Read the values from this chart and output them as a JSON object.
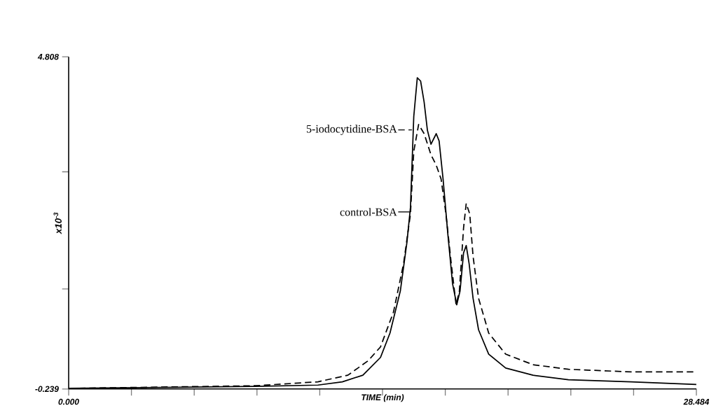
{
  "chart_data": {
    "type": "line",
    "xlabel": "TIME (min)",
    "ylabel": "x10$^{-3}$",
    "xlim": [
      0,
      28.484
    ],
    "ylim": [
      -0.239,
      4.808
    ],
    "xticks": [
      {
        "value": 0,
        "label": "0.000"
      },
      {
        "value": 2.848,
        "label": null
      },
      {
        "value": 5.697,
        "label": null
      },
      {
        "value": 8.545,
        "label": null
      },
      {
        "value": 11.394,
        "label": null
      },
      {
        "value": 14.242,
        "label": null
      },
      {
        "value": 17.09,
        "label": null
      },
      {
        "value": 19.939,
        "label": null
      },
      {
        "value": 22.787,
        "label": null
      },
      {
        "value": 25.636,
        "label": null
      },
      {
        "value": 28.484,
        "label": "28.484"
      }
    ],
    "yticks": [
      {
        "value": -0.239,
        "label": "-0.239"
      },
      {
        "value": 1.28,
        "label": null
      },
      {
        "value": 3.06,
        "label": null
      },
      {
        "value": 4.808,
        "label": "4.808"
      }
    ],
    "grid": false,
    "legend": "top",
    "series": [
      {
        "name": "5-iodocytidine-BSA",
        "color": "#000000",
        "line_style": "dashed",
        "x": [
          0,
          8.47,
          11.31,
          12.67,
          13.59,
          14.15,
          14.74,
          15.2,
          15.51,
          15.66,
          15.88,
          16.13,
          16.44,
          16.68,
          16.9,
          17.12,
          17.36,
          17.58,
          17.73,
          17.92,
          18.04,
          18.2,
          18.35,
          18.6,
          19.06,
          19.83,
          21.07,
          22.68,
          25.52,
          28.48
        ],
        "values": [
          -0.23,
          -0.19,
          -0.13,
          -0.03,
          0.19,
          0.4,
          0.93,
          1.67,
          2.42,
          3.37,
          3.78,
          3.64,
          3.32,
          3.16,
          2.95,
          2.42,
          1.67,
          1.04,
          1.25,
          2.21,
          2.58,
          2.42,
          1.78,
          1.14,
          0.61,
          0.29,
          0.13,
          0.06,
          0.02,
          0.02
        ]
      },
      {
        "name": "control-BSA",
        "color": "#000000",
        "line_style": "solid",
        "x": [
          0,
          5.62,
          8.47,
          11.31,
          12.42,
          13.35,
          14.15,
          14.58,
          15.05,
          15.35,
          15.51,
          15.66,
          15.82,
          15.97,
          16.13,
          16.28,
          16.44,
          16.68,
          16.81,
          16.99,
          17.21,
          17.42,
          17.61,
          17.76,
          17.92,
          18.04,
          18.17,
          18.35,
          18.6,
          19.06,
          19.83,
          21.07,
          22.68,
          25.52,
          28.48
        ],
        "values": [
          -0.23,
          -0.21,
          -0.2,
          -0.18,
          -0.13,
          -0.03,
          0.24,
          0.61,
          1.25,
          1.99,
          2.52,
          3.9,
          4.49,
          4.44,
          4.12,
          3.69,
          3.48,
          3.64,
          3.53,
          2.95,
          2.1,
          1.36,
          1.04,
          1.25,
          1.83,
          1.94,
          1.67,
          1.14,
          0.66,
          0.29,
          0.08,
          -0.03,
          -0.1,
          -0.13,
          -0.17
        ]
      }
    ]
  }
}
